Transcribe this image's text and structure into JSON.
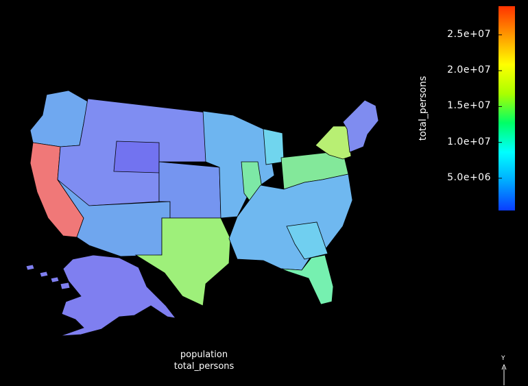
{
  "caption": {
    "line1": "population",
    "line2": "total_persons"
  },
  "colorbar": {
    "title": "total_persons",
    "ticks": [
      {
        "label": "5.0e+06",
        "value": 5000000
      },
      {
        "label": "1.0e+07",
        "value": 10000000
      },
      {
        "label": "1.5e+07",
        "value": 15000000
      },
      {
        "label": "2.0e+07",
        "value": 20000000
      },
      {
        "label": "2.5e+07",
        "value": 25000000
      }
    ],
    "range": [
      500000,
      29000000
    ],
    "colors": [
      "#0a3cff",
      "#00aaff",
      "#00ffff",
      "#00ff66",
      "#aaff00",
      "#ffff00",
      "#ff9900",
      "#ff3300"
    ]
  },
  "axis_indicator": {
    "label": "Y"
  },
  "map_fills": {
    "pacific_nw": "#6fa8f0",
    "california": "#f07878",
    "mountain": "#7f8df2",
    "wyoming": "#7273f0",
    "southwest": "#6fa6ee",
    "great_plains": "#7595f0",
    "texas": "#9ef07a",
    "midwest": "#6eb5f0",
    "illinois": "#7de8a6",
    "michigan": "#70d5ee",
    "ohio_pa": "#83e89a",
    "new_york": "#b8ef73",
    "new_england": "#7f8cf0",
    "southeast": "#6fb8f0",
    "georgia": "#70cff0",
    "florida": "#76f0b0",
    "alaska": "#7f7ff0",
    "hawaii": "#7f7ff0"
  }
}
